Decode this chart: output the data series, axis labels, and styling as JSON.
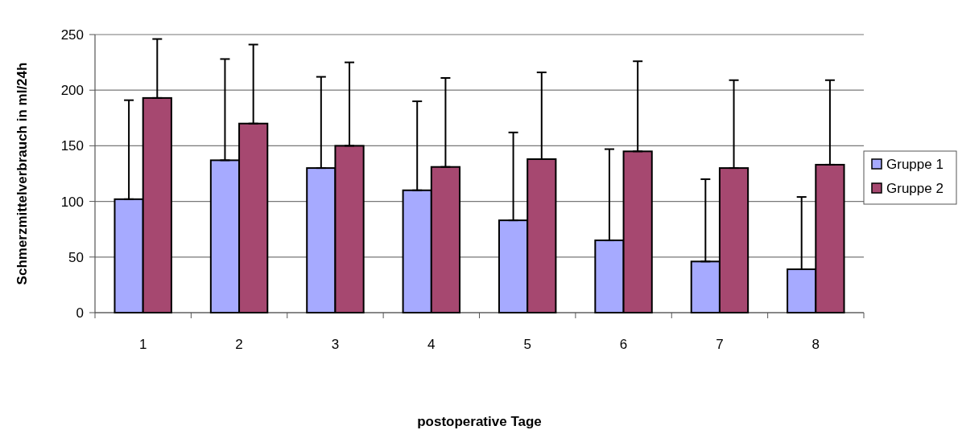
{
  "chart_data": {
    "type": "bar",
    "xlabel": "postoperative Tage",
    "ylabel": "Schmerzmittelverbrauch in ml/24h",
    "categories": [
      "1",
      "2",
      "3",
      "4",
      "5",
      "6",
      "7",
      "8"
    ],
    "series": [
      {
        "name": "Gruppe 1",
        "color": "#a6aaff",
        "values": [
          102,
          137,
          130,
          110,
          83,
          65,
          46,
          39
        ],
        "errors": [
          [
            102,
            191
          ],
          [
            137,
            228
          ],
          [
            130,
            212
          ],
          [
            110,
            190
          ],
          [
            83,
            162
          ],
          [
            65,
            147
          ],
          [
            46,
            120
          ],
          [
            39,
            104
          ]
        ]
      },
      {
        "name": "Gruppe 2",
        "color": "#a64870",
        "values": [
          193,
          170,
          150,
          131,
          138,
          145,
          130,
          133
        ],
        "errors": [
          [
            193,
            246
          ],
          [
            170,
            241
          ],
          [
            150,
            225
          ],
          [
            131,
            211
          ],
          [
            138,
            216
          ],
          [
            145,
            226
          ],
          [
            130,
            209
          ],
          [
            133,
            209
          ]
        ]
      }
    ],
    "ylim": [
      0,
      250
    ],
    "yticks": [
      0,
      50,
      100,
      150,
      200,
      250
    ],
    "grid": "y",
    "legend": "right"
  }
}
